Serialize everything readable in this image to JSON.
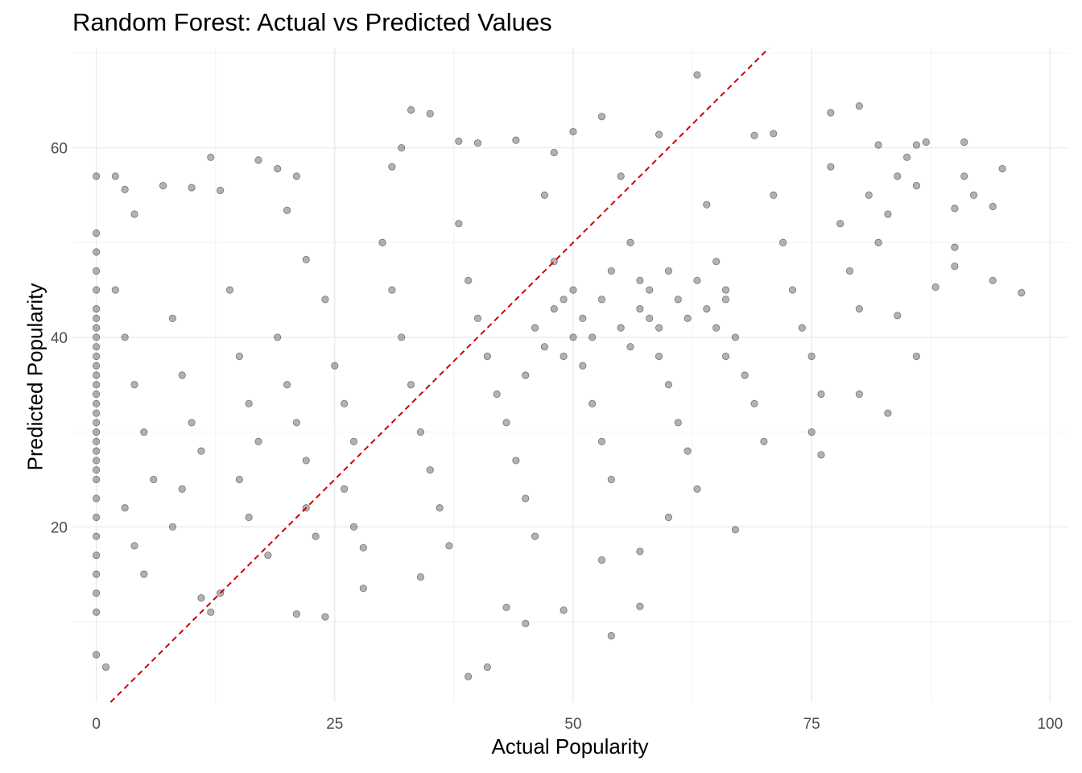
{
  "chart_data": {
    "type": "scatter",
    "title": "Random Forest: Actual vs Predicted Values",
    "xlabel": "Actual Popularity",
    "ylabel": "Predicted Popularity",
    "xlim": [
      -2.5,
      102
    ],
    "ylim": [
      1.5,
      70.5
    ],
    "x_ticks": [
      0,
      25,
      50,
      75,
      100
    ],
    "y_ticks": [
      20,
      40,
      60
    ],
    "grid": true,
    "reference_line": {
      "style": "dashed",
      "color": "#cc0000",
      "slope": 1,
      "intercept": 0
    },
    "point_color": "#000000",
    "point_opacity": 0.3,
    "points_summary": "Dense cloud of several thousand points; actual popularity 0 has predictions ranging roughly 10-51; bulk of points at actual 30-70 with predictions 25-55.",
    "points": [
      [
        0,
        57
      ],
      [
        0,
        6.5
      ],
      [
        1,
        5.2
      ],
      [
        2,
        57
      ],
      [
        3,
        55.6
      ],
      [
        4,
        53
      ],
      [
        7,
        56
      ],
      [
        10,
        55.8
      ],
      [
        12,
        59
      ],
      [
        13,
        55.5
      ],
      [
        17,
        58.7
      ],
      [
        19,
        57.8
      ],
      [
        21,
        57
      ],
      [
        21,
        10.8
      ],
      [
        24,
        10.5
      ],
      [
        11,
        12.5
      ],
      [
        12,
        11
      ],
      [
        13,
        13
      ],
      [
        20,
        53.4
      ],
      [
        22,
        48.2
      ],
      [
        28,
        17.8
      ],
      [
        28,
        13.5
      ],
      [
        31,
        58
      ],
      [
        32,
        60
      ],
      [
        33,
        64
      ],
      [
        35,
        63.6
      ],
      [
        34,
        14.7
      ],
      [
        38,
        60.7
      ],
      [
        39,
        4.2
      ],
      [
        40,
        60.5
      ],
      [
        41,
        5.2
      ],
      [
        43,
        11.5
      ],
      [
        44,
        60.8
      ],
      [
        45,
        9.8
      ],
      [
        48,
        59.5
      ],
      [
        49,
        11.2
      ],
      [
        50,
        61.7
      ],
      [
        53,
        63.3
      ],
      [
        53,
        16.5
      ],
      [
        54,
        8.5
      ],
      [
        57,
        11.6
      ],
      [
        57,
        17.4
      ],
      [
        59,
        61.4
      ],
      [
        60,
        21
      ],
      [
        63,
        67.7
      ],
      [
        67,
        19.7
      ],
      [
        69,
        61.3
      ],
      [
        71,
        61.5
      ],
      [
        77,
        63.7
      ],
      [
        80,
        64.4
      ],
      [
        82,
        60.3
      ],
      [
        84,
        42.3
      ],
      [
        86,
        60.3
      ],
      [
        87,
        60.6
      ],
      [
        88,
        45.3
      ],
      [
        90,
        53.6
      ],
      [
        90,
        49.5
      ],
      [
        90,
        47.5
      ],
      [
        91,
        60.6
      ],
      [
        91,
        57
      ],
      [
        92,
        55
      ],
      [
        94,
        53.8
      ],
      [
        94,
        46
      ],
      [
        95,
        57.8
      ],
      [
        97,
        44.7
      ],
      [
        86,
        38
      ],
      [
        83,
        32
      ],
      [
        80,
        34
      ],
      [
        66,
        38
      ],
      [
        75,
        30
      ],
      [
        76,
        27.6
      ],
      [
        0,
        51
      ],
      [
        0,
        49
      ],
      [
        0,
        47
      ],
      [
        0,
        45
      ],
      [
        0,
        43
      ],
      [
        0,
        41
      ],
      [
        0,
        39
      ],
      [
        0,
        37
      ],
      [
        0,
        35
      ],
      [
        0,
        33
      ],
      [
        0,
        31
      ],
      [
        0,
        29
      ],
      [
        0,
        27
      ],
      [
        0,
        25
      ],
      [
        0,
        23
      ],
      [
        0,
        21
      ],
      [
        0,
        19
      ],
      [
        0,
        17
      ],
      [
        0,
        15
      ],
      [
        0,
        13
      ],
      [
        0,
        11
      ],
      [
        0,
        42
      ],
      [
        0,
        38
      ],
      [
        0,
        34
      ],
      [
        0,
        30
      ],
      [
        0,
        26
      ],
      [
        0,
        40
      ],
      [
        0,
        36
      ],
      [
        0,
        32
      ],
      [
        0,
        28
      ],
      [
        2,
        45
      ],
      [
        3,
        40
      ],
      [
        4,
        35
      ],
      [
        5,
        30
      ],
      [
        6,
        25
      ],
      [
        3,
        22
      ],
      [
        4,
        18
      ],
      [
        5,
        15
      ],
      [
        8,
        42
      ],
      [
        9,
        36
      ],
      [
        10,
        31
      ],
      [
        11,
        28
      ],
      [
        9,
        24
      ],
      [
        8,
        20
      ],
      [
        14,
        45
      ],
      [
        15,
        38
      ],
      [
        16,
        33
      ],
      [
        17,
        29
      ],
      [
        15,
        25
      ],
      [
        16,
        21
      ],
      [
        18,
        17
      ],
      [
        19,
        40
      ],
      [
        20,
        35
      ],
      [
        21,
        31
      ],
      [
        22,
        27
      ],
      [
        22,
        22
      ],
      [
        23,
        19
      ],
      [
        24,
        44
      ],
      [
        25,
        37
      ],
      [
        26,
        33
      ],
      [
        27,
        29
      ],
      [
        26,
        24
      ],
      [
        27,
        20
      ],
      [
        30,
        50
      ],
      [
        31,
        45
      ],
      [
        32,
        40
      ],
      [
        33,
        35
      ],
      [
        34,
        30
      ],
      [
        35,
        26
      ],
      [
        36,
        22
      ],
      [
        37,
        18
      ],
      [
        38,
        52
      ],
      [
        39,
        46
      ],
      [
        40,
        42
      ],
      [
        41,
        38
      ],
      [
        42,
        34
      ],
      [
        43,
        31
      ],
      [
        44,
        27
      ],
      [
        45,
        23
      ],
      [
        46,
        19
      ],
      [
        47,
        55
      ],
      [
        48,
        48
      ],
      [
        49,
        44
      ],
      [
        50,
        40
      ],
      [
        51,
        37
      ],
      [
        52,
        33
      ],
      [
        53,
        29
      ],
      [
        54,
        25
      ],
      [
        55,
        57
      ],
      [
        56,
        50
      ],
      [
        57,
        46
      ],
      [
        58,
        42
      ],
      [
        59,
        38
      ],
      [
        60,
        35
      ],
      [
        61,
        31
      ],
      [
        62,
        28
      ],
      [
        63,
        24
      ],
      [
        64,
        54
      ],
      [
        65,
        48
      ],
      [
        66,
        44
      ],
      [
        67,
        40
      ],
      [
        68,
        36
      ],
      [
        69,
        33
      ],
      [
        70,
        29
      ],
      [
        71,
        55
      ],
      [
        72,
        50
      ],
      [
        73,
        45
      ],
      [
        74,
        41
      ],
      [
        75,
        38
      ],
      [
        76,
        34
      ],
      [
        77,
        58
      ],
      [
        78,
        52
      ],
      [
        79,
        47
      ],
      [
        80,
        43
      ],
      [
        81,
        55
      ],
      [
        82,
        50
      ],
      [
        83,
        53
      ],
      [
        84,
        57
      ],
      [
        85,
        59
      ],
      [
        86,
        56
      ],
      [
        45,
        36
      ],
      [
        46,
        41
      ],
      [
        47,
        39
      ],
      [
        48,
        43
      ],
      [
        49,
        38
      ],
      [
        50,
        45
      ],
      [
        51,
        42
      ],
      [
        52,
        40
      ],
      [
        53,
        44
      ],
      [
        54,
        47
      ],
      [
        55,
        41
      ],
      [
        56,
        39
      ],
      [
        57,
        43
      ],
      [
        58,
        45
      ],
      [
        59,
        41
      ],
      [
        60,
        47
      ],
      [
        61,
        44
      ],
      [
        62,
        42
      ],
      [
        63,
        46
      ],
      [
        64,
        43
      ],
      [
        65,
        41
      ],
      [
        66,
        45
      ]
    ]
  }
}
